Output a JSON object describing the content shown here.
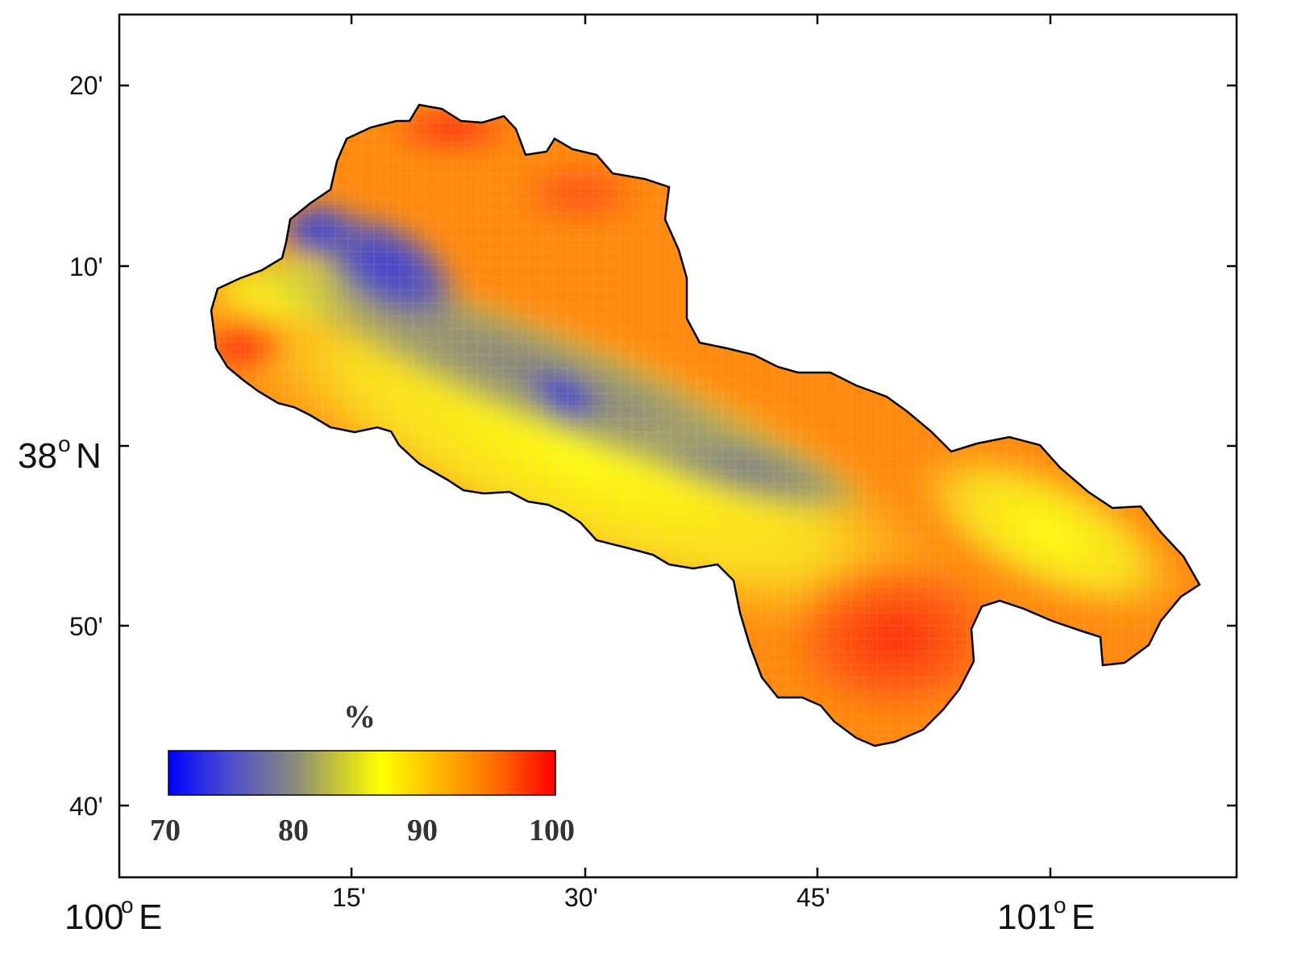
{
  "map": {
    "lat_ticks": [
      "20'",
      "10'",
      "38",
      "50'",
      "40'"
    ],
    "lat_hemisphere": "N",
    "lon_ticks": [
      "100",
      "15'",
      "30'",
      "45'",
      "101"
    ],
    "lon_hemisphere": "E",
    "degree_symbol": "o"
  },
  "legend": {
    "title": "%",
    "ticks": [
      "70",
      "80",
      "90",
      "100"
    ],
    "range": [
      70,
      100
    ],
    "colors": [
      "#0000ff",
      "#5a5acc",
      "#8a8a80",
      "#c8c840",
      "#ffff00",
      "#ffb000",
      "#ff6000",
      "#ff0000"
    ]
  },
  "colors": {
    "low": "#3838e0",
    "mid": "#b8b850",
    "high": "#ff3a10",
    "outline": "#000000"
  }
}
